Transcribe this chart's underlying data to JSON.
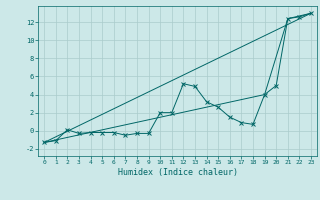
{
  "title": "",
  "xlabel": "Humidex (Indice chaleur)",
  "bg_color": "#cce8e8",
  "grid_color": "#aacccc",
  "line_color": "#006666",
  "xlim": [
    -0.5,
    23.5
  ],
  "ylim": [
    -2.8,
    13.8
  ],
  "xticks": [
    0,
    1,
    2,
    3,
    4,
    5,
    6,
    7,
    8,
    9,
    10,
    11,
    12,
    13,
    14,
    15,
    16,
    17,
    18,
    19,
    20,
    21,
    22,
    23
  ],
  "yticks": [
    -2,
    0,
    2,
    4,
    6,
    8,
    10,
    12
  ],
  "series": [
    [
      0,
      -1.3
    ],
    [
      1,
      -1.1
    ],
    [
      2,
      0.1
    ],
    [
      3,
      -0.3
    ],
    [
      4,
      -0.2
    ],
    [
      5,
      -0.2
    ],
    [
      6,
      -0.2
    ],
    [
      7,
      -0.5
    ],
    [
      8,
      -0.3
    ],
    [
      9,
      -0.3
    ],
    [
      10,
      2.0
    ],
    [
      11,
      2.0
    ],
    [
      12,
      5.2
    ],
    [
      13,
      4.9
    ],
    [
      14,
      3.2
    ],
    [
      15,
      2.6
    ],
    [
      16,
      1.5
    ],
    [
      17,
      0.9
    ],
    [
      18,
      0.7
    ],
    [
      19,
      4.0
    ],
    [
      20,
      5.0
    ],
    [
      21,
      12.4
    ],
    [
      22,
      12.6
    ],
    [
      23,
      13.0
    ]
  ],
  "line2": [
    [
      0,
      -1.3
    ],
    [
      23,
      13.0
    ]
  ],
  "line3": [
    [
      0,
      -1.3
    ],
    [
      19,
      4.0
    ],
    [
      21,
      12.4
    ],
    [
      23,
      13.0
    ]
  ]
}
